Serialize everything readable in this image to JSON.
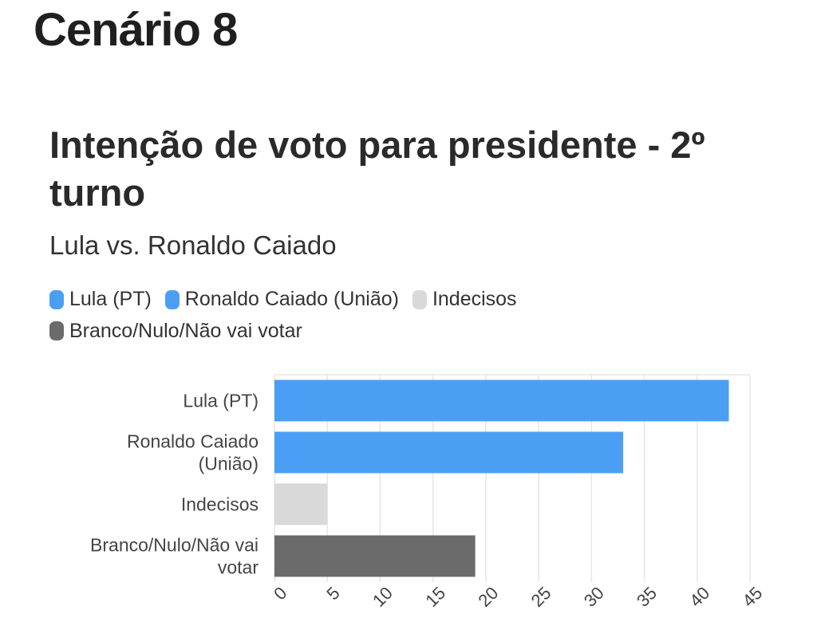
{
  "page": {
    "scenario_title": "Cenário 8"
  },
  "chart_data": {
    "type": "bar",
    "orientation": "horizontal",
    "title": "Intenção de voto para presidente - 2º turno",
    "subtitle": "Lula vs. Ronaldo Caiado",
    "categories": [
      "Lula (PT)",
      "Ronaldo Caiado (União)",
      "Indecisos",
      "Branco/Nulo/Não vai votar"
    ],
    "category_label_lines": [
      [
        "Lula (PT)"
      ],
      [
        "Ronaldo Caiado",
        "(União)"
      ],
      [
        "Indecisos"
      ],
      [
        "Branco/Nulo/Não vai",
        "votar"
      ]
    ],
    "values": [
      43,
      33,
      5,
      19
    ],
    "colors": [
      "#4a9ff5",
      "#4a9ff5",
      "#d9d9d9",
      "#6b6b6b"
    ],
    "legend": [
      {
        "label": "Lula (PT)",
        "color": "#4a9ff5"
      },
      {
        "label": "Ronaldo Caiado (União)",
        "color": "#4a9ff5"
      },
      {
        "label": "Indecisos",
        "color": "#d9d9d9"
      },
      {
        "label": "Branco/Nulo/Não vai votar",
        "color": "#6b6b6b"
      }
    ],
    "legend_position": "top-left",
    "xlim": [
      0,
      45
    ],
    "xticks": [
      "0",
      "5",
      "10",
      "15",
      "20",
      "25",
      "30",
      "35",
      "40",
      "45"
    ],
    "grid": true,
    "xlabel": "",
    "ylabel": ""
  }
}
